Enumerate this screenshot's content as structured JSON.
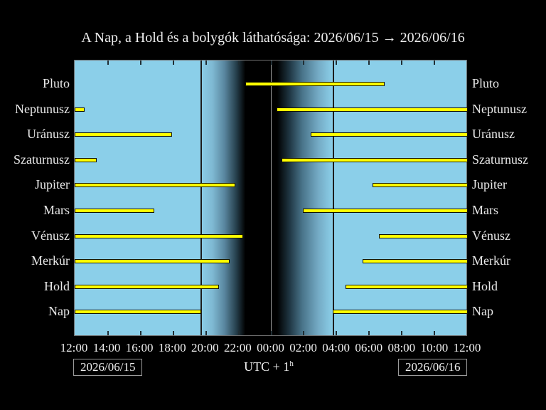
{
  "title": "A Nap, a Hold és a bolygók láthatósága: 2026/06/15 → 2026/06/16",
  "footer": {
    "left_date": "2026/06/15",
    "right_date": "2026/06/16",
    "timezone_label": "UTC + 1",
    "timezone_sup": "h"
  },
  "chart_data": {
    "type": "bar",
    "variant": "visibility-interval-chart",
    "title": "A Nap, a Hold és a bolygók láthatósága: 2026/06/15 → 2026/06/16",
    "categories": [
      "Pluto",
      "Neptunusz",
      "Uránusz",
      "Szaturnusz",
      "Jupiter",
      "Mars",
      "Vénusz",
      "Merkúr",
      "Hold",
      "Nap"
    ],
    "x_ticks": [
      "12:00",
      "14:00",
      "16:00",
      "18:00",
      "20:00",
      "22:00",
      "00:00",
      "02:00",
      "04:00",
      "06:00",
      "08:00",
      "10:00",
      "12:00"
    ],
    "x_range_hours": [
      0,
      24
    ],
    "x_start_time": "12:00",
    "series": [
      {
        "name": "Pluto",
        "segments_h": [
          [
            10.46,
            18.92
          ]
        ]
      },
      {
        "name": "Neptunusz",
        "segments_h": [
          [
            0,
            0.52
          ],
          [
            12.35,
            24
          ]
        ]
      },
      {
        "name": "Uránusz",
        "segments_h": [
          [
            0,
            5.86
          ],
          [
            14.45,
            24
          ]
        ]
      },
      {
        "name": "Szaturnusz",
        "segments_h": [
          [
            0,
            1.26
          ],
          [
            12.67,
            24
          ]
        ]
      },
      {
        "name": "Jupiter",
        "segments_h": [
          [
            0,
            9.77
          ],
          [
            18.27,
            24
          ]
        ]
      },
      {
        "name": "Mars",
        "segments_h": [
          [
            0,
            4.77
          ],
          [
            13.98,
            24
          ]
        ]
      },
      {
        "name": "Vénusz",
        "segments_h": [
          [
            0,
            10.24
          ],
          [
            18.66,
            24
          ]
        ]
      },
      {
        "name": "Merkúr",
        "segments_h": [
          [
            0,
            9.42
          ],
          [
            17.62,
            24
          ]
        ]
      },
      {
        "name": "Hold",
        "segments_h": [
          [
            0,
            8.77
          ],
          [
            16.58,
            24
          ]
        ]
      },
      {
        "name": "Nap",
        "segments_h": [
          [
            0,
            7.68
          ],
          [
            15.8,
            24
          ]
        ]
      }
    ],
    "night": {
      "sunset_h": 7.7,
      "sunrise_h": 15.83,
      "midnight_line_h": 12
    },
    "legend": "none",
    "grid": "off",
    "colors": {
      "background": "#000000",
      "day_sky": "#8bcfe9",
      "night": "#000000",
      "bar_fill": "#ffff00",
      "bar_outline": "#141400",
      "plot_border": "#6f6f6f",
      "midnight_line": "#9a9a9a",
      "sun_event_line": "#1d1d1d",
      "text": "#ededed"
    }
  }
}
